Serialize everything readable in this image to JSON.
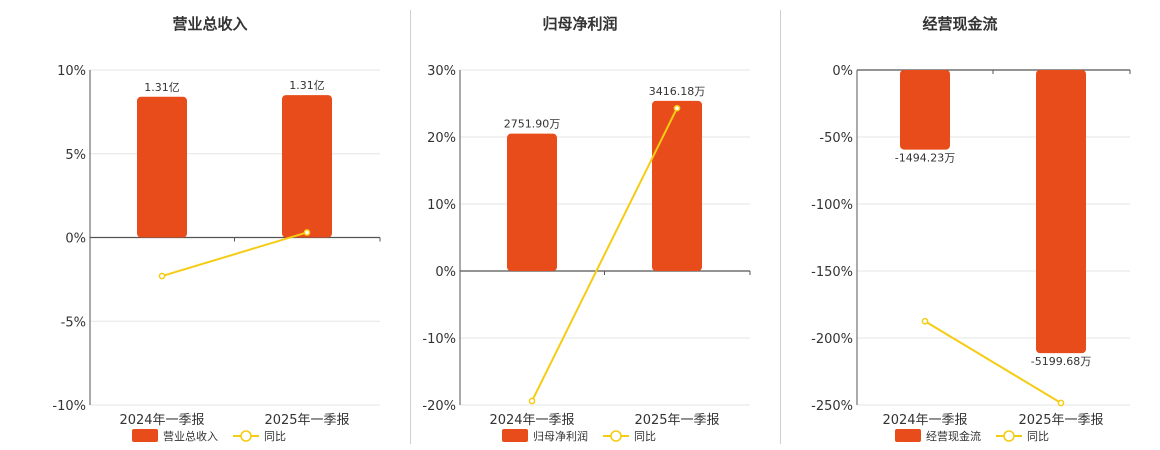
{
  "colors": {
    "bar": "#e84c1a",
    "line": "#f5cc14",
    "axis": "#555555",
    "grid": "#e6e6e6"
  },
  "legend_line_label": "同比",
  "chart_data": [
    {
      "type": "bar",
      "title": "营业总收入",
      "categories": [
        "2024年一季报",
        "2025年一季报"
      ],
      "ylim": [
        -10,
        10
      ],
      "yticks": [
        10,
        5,
        0,
        -5,
        -10
      ],
      "ytick_labels": [
        "10%",
        "5%",
        "0%",
        "-5%",
        "-10%"
      ],
      "grid": true,
      "legend": "bottom",
      "series": [
        {
          "name": "营业总收入",
          "kind": "bar",
          "values": [
            8.4,
            8.5
          ],
          "labels": [
            "1.31亿",
            "1.31亿"
          ]
        },
        {
          "name": "同比",
          "kind": "line",
          "values": [
            -2.3,
            0.3
          ]
        }
      ]
    },
    {
      "type": "bar",
      "title": "归母净利润",
      "categories": [
        "2024年一季报",
        "2025年一季报"
      ],
      "ylim": [
        -20,
        30
      ],
      "yticks": [
        30,
        20,
        10,
        0,
        -10,
        -20
      ],
      "ytick_labels": [
        "30%",
        "20%",
        "10%",
        "0%",
        "-10%",
        "-20%"
      ],
      "grid": true,
      "legend": "bottom",
      "series": [
        {
          "name": "归母净利润",
          "kind": "bar",
          "values": [
            20.5,
            25.4
          ],
          "labels": [
            "2751.90万",
            "3416.18万"
          ]
        },
        {
          "name": "同比",
          "kind": "line",
          "values": [
            -19.4,
            24.3
          ]
        }
      ]
    },
    {
      "type": "bar",
      "title": "经营现金流",
      "categories": [
        "2024年一季报",
        "2025年一季报"
      ],
      "ylim": [
        -250,
        0
      ],
      "yticks": [
        0,
        -50,
        -100,
        -150,
        -200,
        -250
      ],
      "ytick_labels": [
        "0%",
        "-50%",
        "-100%",
        "-150%",
        "-200%",
        "-250%"
      ],
      "grid": true,
      "legend": "bottom",
      "series": [
        {
          "name": "经营现金流",
          "kind": "bar",
          "values": [
            -59.4,
            -211.3
          ],
          "labels": [
            "-1494.23万",
            "-5199.68万"
          ]
        },
        {
          "name": "同比",
          "kind": "line",
          "values": [
            -187.5,
            -248.5
          ]
        }
      ]
    }
  ]
}
